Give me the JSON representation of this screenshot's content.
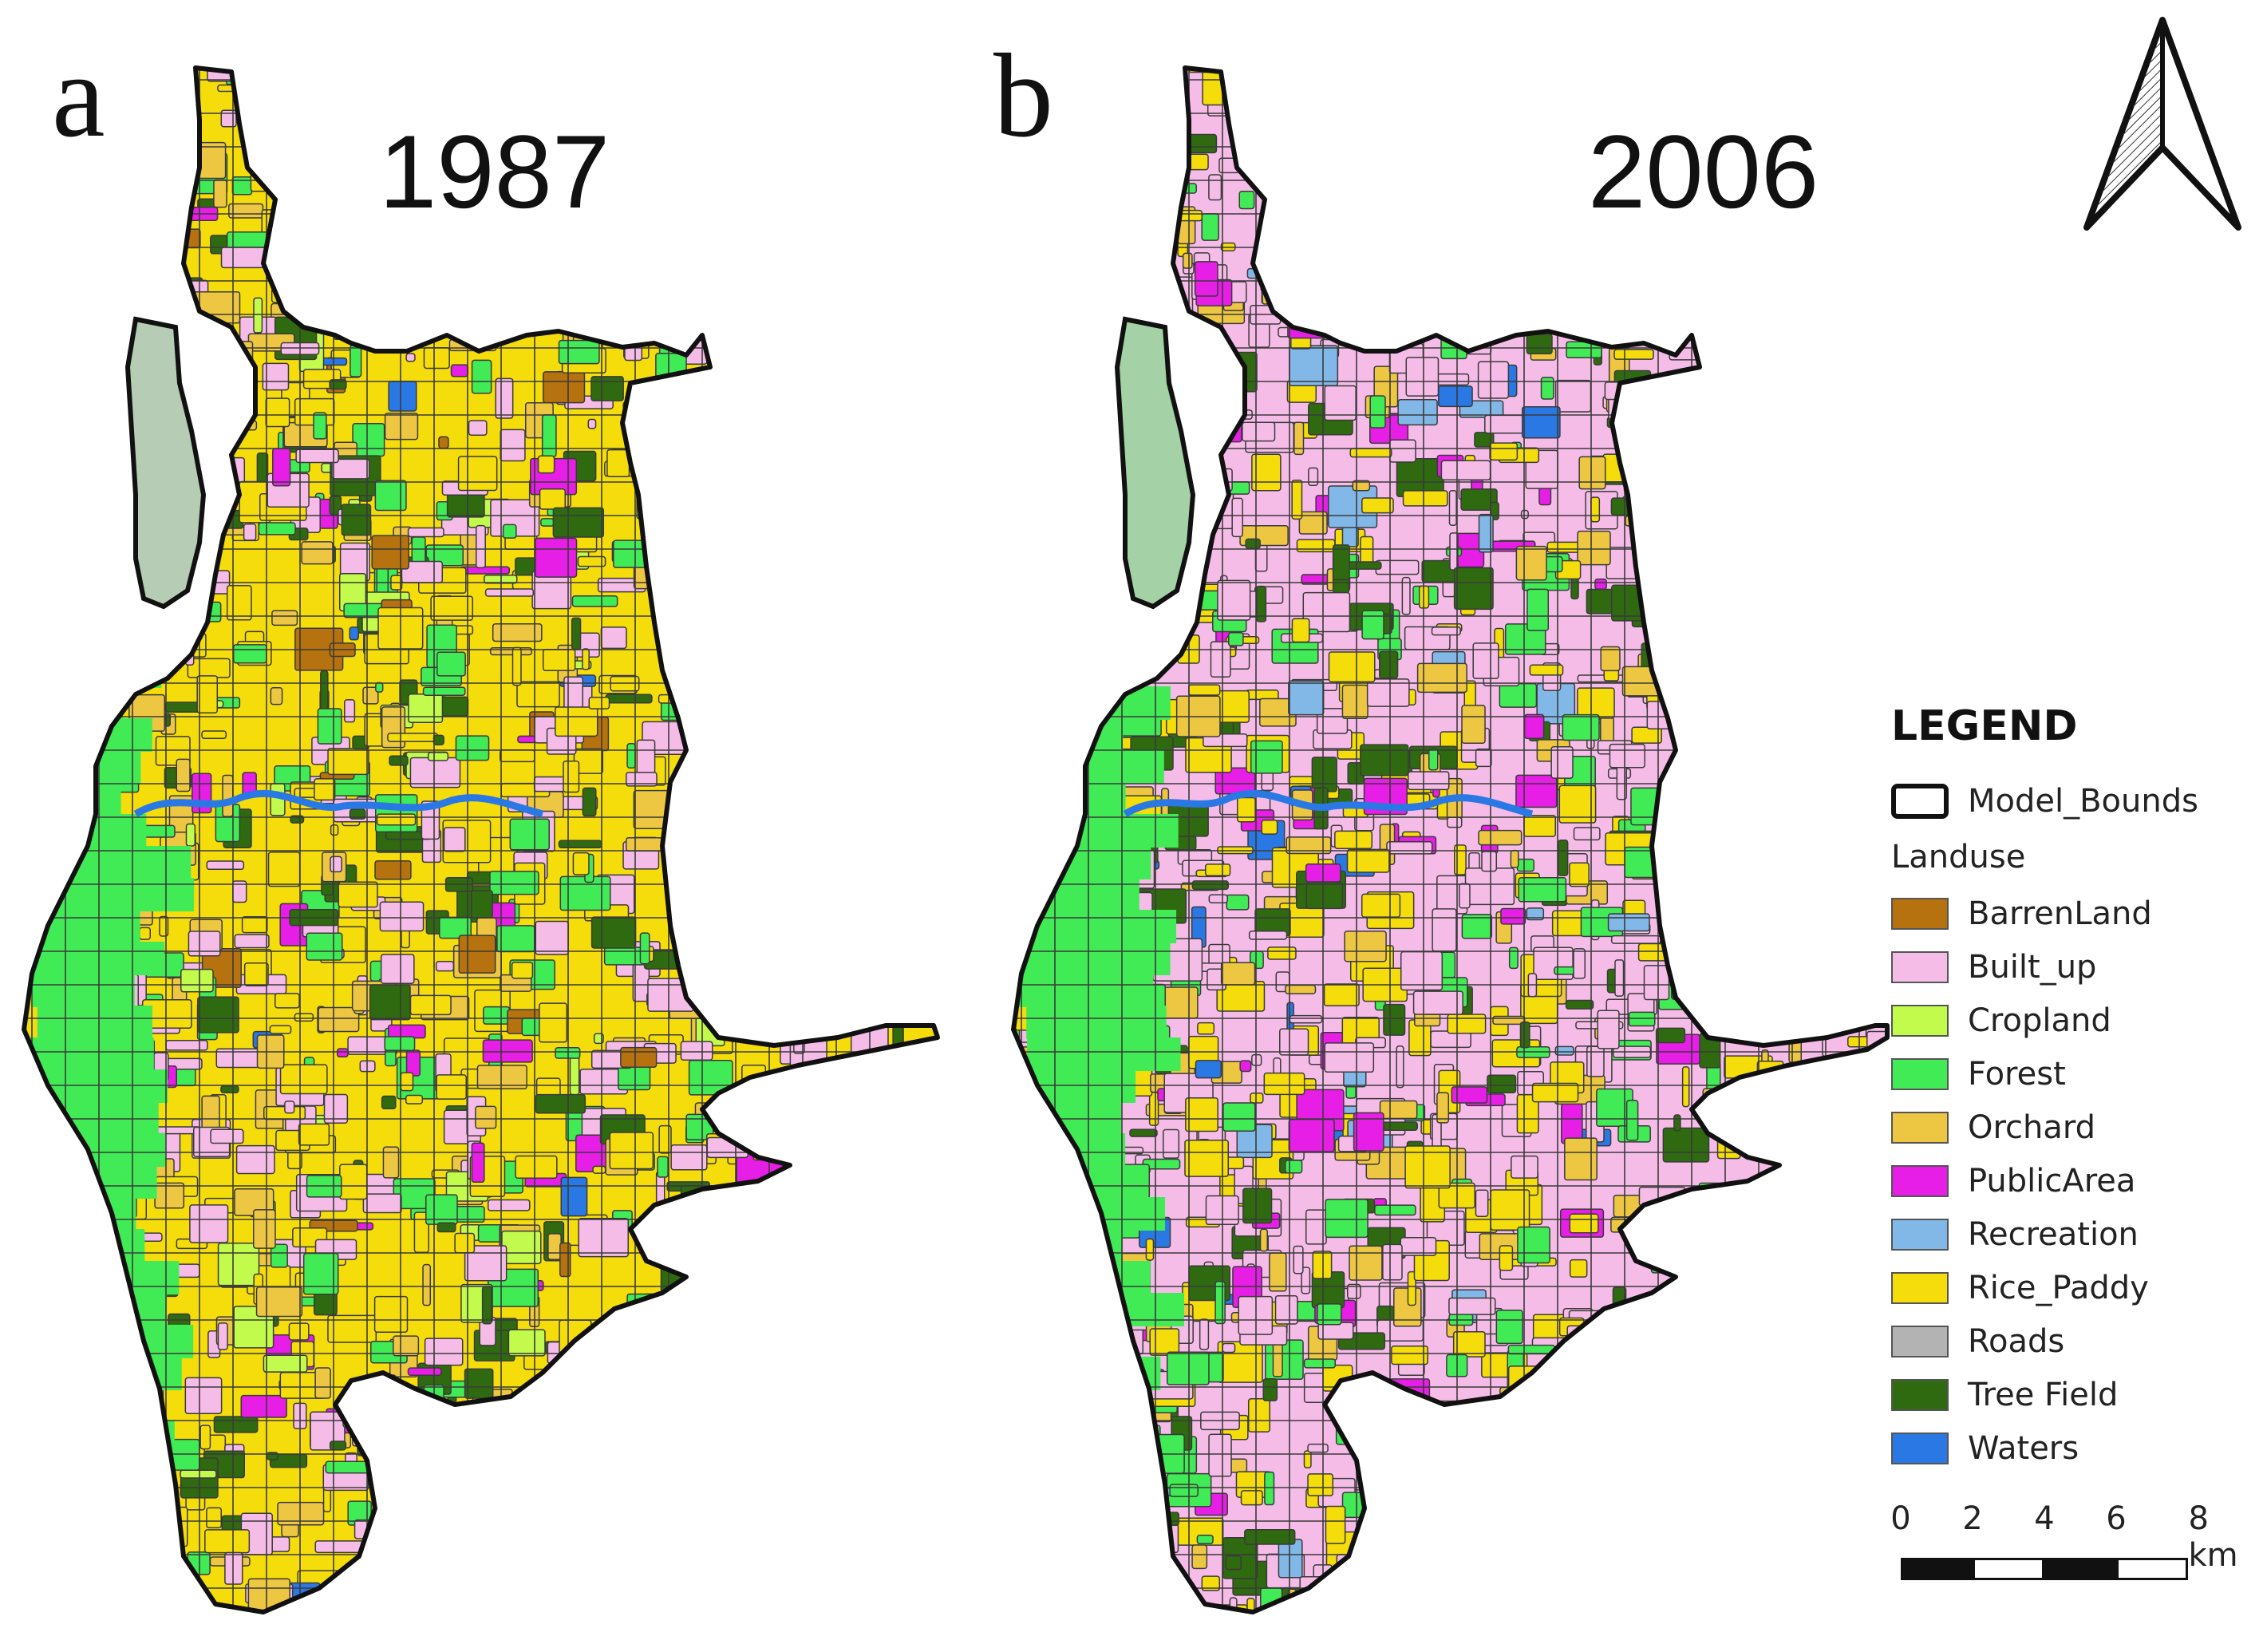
{
  "panels": [
    {
      "letter": "a",
      "year": "1987"
    },
    {
      "letter": "b",
      "year": "2006"
    }
  ],
  "north_arrow_icon": "north-arrow-icon",
  "legend": {
    "title": "LEGEND",
    "bounds_label": "Model_Bounds",
    "subtitle": "Landuse",
    "classes": [
      {
        "label": "BarrenLand",
        "color": "#B5720F"
      },
      {
        "label": "Built_up",
        "color": "#F6BCE8"
      },
      {
        "label": "Cropland",
        "color": "#C2FB4B"
      },
      {
        "label": "Forest",
        "color": "#41EB55"
      },
      {
        "label": "Orchard",
        "color": "#EDC642"
      },
      {
        "label": "PublicArea",
        "color": "#E61EE6"
      },
      {
        "label": "Recreation",
        "color": "#82B8E8"
      },
      {
        "label": "Rice_Paddy",
        "color": "#F5DC0B"
      },
      {
        "label": "Roads",
        "color": "#B3B3B3"
      },
      {
        "label": "Tree Field",
        "color": "#2F6A10"
      },
      {
        "label": "Waters",
        "color": "#2A78E4"
      }
    ]
  },
  "scale_bar": {
    "ticks": [
      "0",
      "2",
      "4",
      "6",
      "8 km"
    ]
  }
}
